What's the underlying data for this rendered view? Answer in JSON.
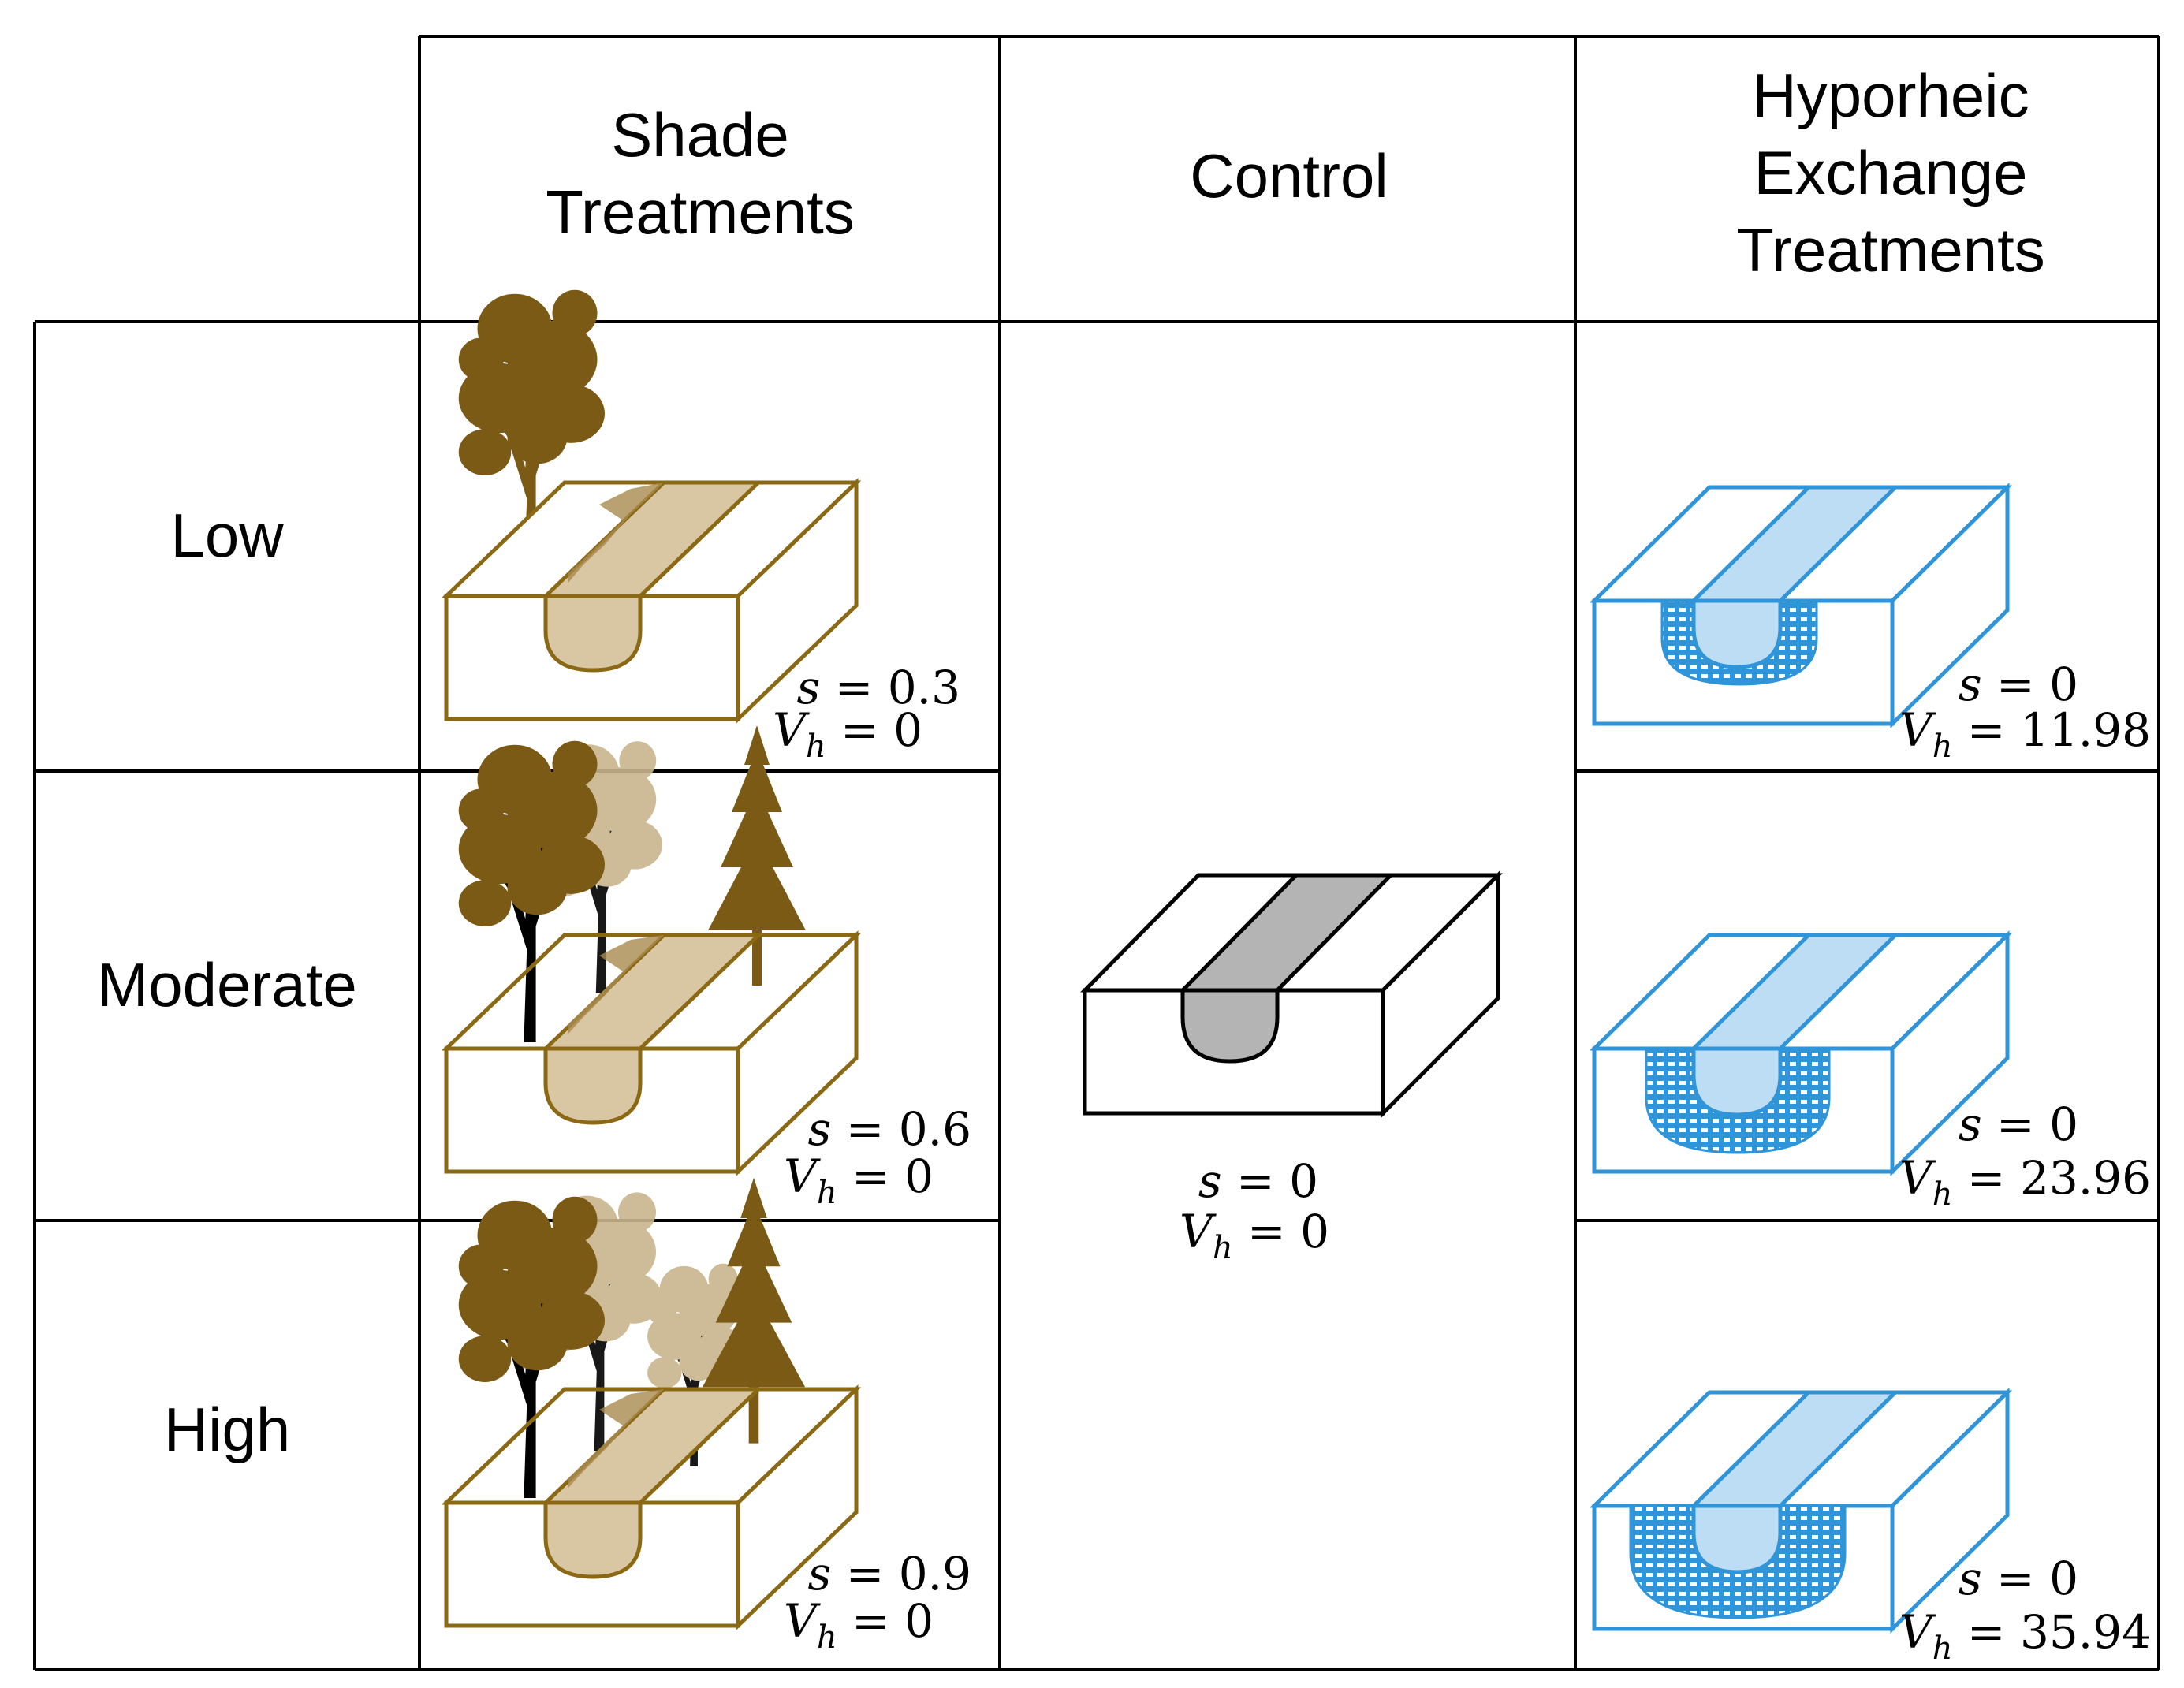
{
  "column_headers": {
    "shade": [
      "Shade",
      "Treatments"
    ],
    "control": [
      "Control"
    ],
    "hyporheic": [
      "Hyporheic",
      "Exchange",
      "Treatments"
    ]
  },
  "row_headers": {
    "low": "Low",
    "moderate": "Moderate",
    "high": "High"
  },
  "symbols": {
    "s": "s",
    "V": "V",
    "h": "h",
    "eq": "="
  },
  "shade_cells": [
    {
      "level": "low",
      "s": "0.3",
      "vh": "0"
    },
    {
      "level": "moderate",
      "s": "0.6",
      "vh": "0"
    },
    {
      "level": "high",
      "s": "0.9",
      "vh": "0"
    }
  ],
  "control_cell": {
    "s": "0",
    "vh": "0"
  },
  "hyporheic_cells": [
    {
      "level": "low",
      "s": "0",
      "vh": "11.98"
    },
    {
      "level": "moderate",
      "s": "0",
      "vh": "23.96"
    },
    {
      "level": "high",
      "s": "0",
      "vh": "35.94"
    }
  ],
  "icons": {
    "tree": "deciduous-tree-icon",
    "conifer": "conifer-tree-icon",
    "block": "stream-block-icon"
  },
  "colors": {
    "shade_stroke": "#8B6914",
    "shade_fill": "#D9C7A4",
    "tree_dark": "#7A5A14",
    "tree_light": "#C8B58C",
    "hyporheic_stroke": "#2F95D8",
    "hyporheic_fill": "#BCDDF4",
    "control_fill": "#B4B4B4"
  }
}
